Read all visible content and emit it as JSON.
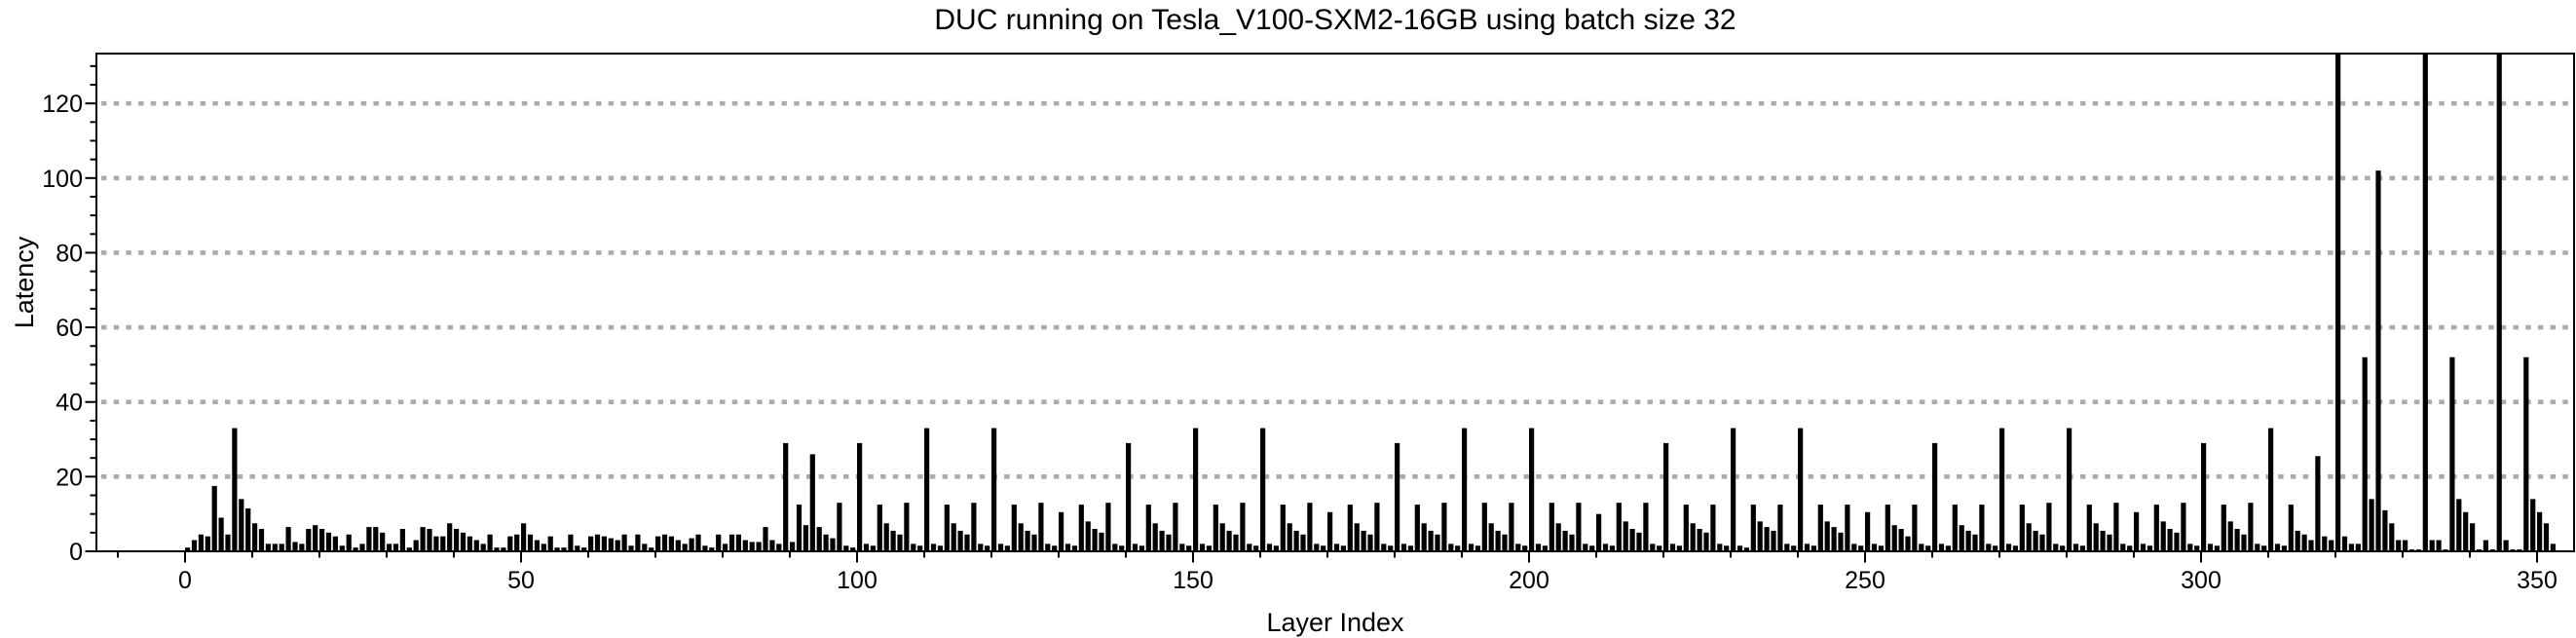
{
  "page": {
    "background": "#ffffff"
  },
  "chart_data": {
    "type": "bar",
    "title": "DUC running on Tesla_V100-SXM2-16GB using batch size 32",
    "xlabel": "Layer Index",
    "ylabel": "Latency",
    "x_tick_labels": [
      0,
      50,
      100,
      150,
      200,
      250,
      300,
      350
    ],
    "y_tick_labels": [
      0,
      20,
      40,
      60,
      80,
      100,
      120
    ],
    "x_minor_tick_step": 10,
    "y_minor_tick_step": 5,
    "xlim": [
      -13,
      356
    ],
    "ylim": [
      0,
      133.4
    ],
    "grid": {
      "horizontal_dotted_at": [
        20,
        40,
        60,
        80,
        100,
        120
      ],
      "color": "#ababab"
    },
    "bar_color": "#000000",
    "text_color": "#000000",
    "legend": "none",
    "x_start_layer": 0,
    "clipped_bar_layers": [
      320,
      333,
      344
    ],
    "clipped_note": "bars at layers 320, 333 and 344 exceed the y-axis range and are clipped flat at the plot top (>133)",
    "values": [
      1,
      3,
      4.5,
      4,
      17.5,
      9,
      4.5,
      33,
      14,
      11.5,
      7.5,
      6,
      2,
      2,
      2,
      6.5,
      2.5,
      2,
      6,
      7,
      6,
      5,
      4,
      1.5,
      4.5,
      1,
      2,
      6.5,
      6.5,
      5,
      2,
      2,
      6,
      1,
      3,
      6.5,
      6,
      4,
      4,
      7.5,
      6,
      5,
      4,
      3,
      2,
      4.5,
      1,
      1,
      4,
      4.5,
      7.5,
      4.5,
      3,
      2,
      4,
      1,
      1,
      4.5,
      1.5,
      1,
      4,
      4.5,
      4,
      3.5,
      3,
      4.5,
      1.5,
      4.5,
      2,
      1,
      4,
      4.5,
      4,
      3,
      2,
      3.5,
      4.5,
      1.5,
      1,
      4.5,
      2,
      4.5,
      4.5,
      3,
      2.5,
      2.5,
      6.5,
      3,
      2,
      29,
      2.5,
      12.5,
      7,
      26,
      6.5,
      4.5,
      3.5,
      13,
      1.5,
      1,
      29,
      2,
      1.5,
      12.5,
      7.5,
      5.5,
      4.5,
      13,
      2,
      1.5,
      33,
      2,
      1.5,
      12.5,
      7.5,
      5.5,
      4.5,
      13,
      2,
      1.5,
      33,
      2,
      1.5,
      12.5,
      7.5,
      5.5,
      4.5,
      13,
      2,
      1.5,
      10.5,
      2,
      1.5,
      12.5,
      8,
      6,
      5,
      13,
      2,
      1.5,
      29,
      2,
      1.5,
      12.5,
      7.5,
      5.5,
      4.5,
      13,
      2,
      1.5,
      33,
      2,
      1.5,
      12.5,
      7.5,
      5.5,
      4.5,
      13,
      2,
      1.5,
      33,
      2,
      1.5,
      12.5,
      7.5,
      5.5,
      4.5,
      13,
      2,
      1.5,
      10.5,
      2,
      1.5,
      12.5,
      7.5,
      5.5,
      4.5,
      13,
      2,
      1.5,
      29,
      2,
      1.5,
      12.5,
      7.5,
      5.5,
      4.5,
      13,
      2,
      1.5,
      33,
      2,
      1.5,
      13,
      7.5,
      5.5,
      4.5,
      13,
      2,
      1.5,
      33,
      2,
      1.5,
      13,
      7.5,
      5.5,
      4.5,
      13,
      2,
      1.5,
      10,
      2,
      1.5,
      13,
      8,
      6,
      5,
      13,
      2,
      1.5,
      29,
      2,
      1.5,
      12.5,
      7.5,
      6,
      5,
      12.5,
      2,
      1.5,
      33,
      1.5,
      1,
      12.5,
      8,
      6.5,
      5.5,
      12.5,
      2,
      1.5,
      33,
      2,
      1.5,
      12.5,
      8,
      6.5,
      5,
      12.5,
      2,
      1.5,
      10.5,
      2,
      1.5,
      12.5,
      7,
      6,
      4,
      12.5,
      2,
      1.5,
      29,
      2,
      1.5,
      12.5,
      7,
      5.5,
      4.5,
      12.5,
      2,
      1.5,
      33,
      2,
      1.5,
      12.5,
      7.5,
      5.5,
      4.5,
      13,
      2,
      1.5,
      33,
      2,
      1.5,
      12.5,
      7.5,
      5.5,
      4.5,
      13,
      2,
      1.5,
      10.5,
      2,
      1.5,
      12.5,
      8,
      6,
      5,
      13,
      2,
      1.5,
      29,
      2,
      1.5,
      12.5,
      8,
      6,
      4.5,
      13,
      2,
      1.5,
      33,
      2,
      1.5,
      12.5,
      5.5,
      4.5,
      3,
      25.5,
      4,
      3,
      135,
      4,
      2,
      2,
      52,
      14,
      102,
      11,
      7.5,
      3,
      3,
      0.5,
      0.5,
      135,
      3,
      3,
      0.5,
      52,
      14,
      10.5,
      7.5,
      0.5,
      3,
      0.5,
      135,
      3,
      0.5,
      0.5,
      52,
      14,
      10.5,
      7.5,
      2
    ]
  }
}
